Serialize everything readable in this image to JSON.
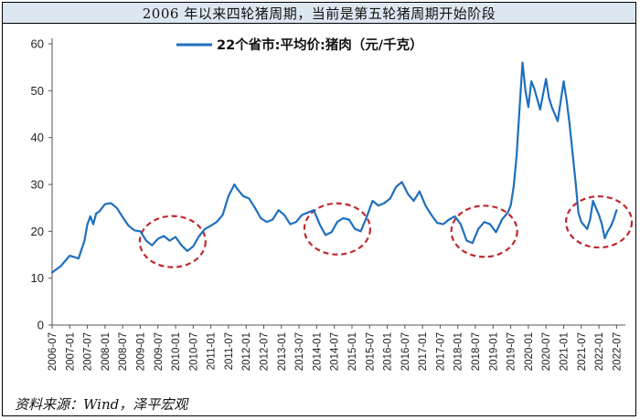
{
  "title": "2006 年以来四轮猪周期，当前是第五轮猪周期开始阶段",
  "source": "资料来源：Wind，泽平宏观",
  "chart_data": {
    "type": "line",
    "series": [
      {
        "name": "22个省市:平均价:猪肉（元/千克）",
        "color": "#1f6fbd",
        "points": [
          [
            "2006-07",
            11.2
          ],
          [
            "2006-10",
            12.6
          ],
          [
            "2007-01",
            14.8
          ],
          [
            "2007-04",
            14.2
          ],
          [
            "2007-06",
            18.0
          ],
          [
            "2007-07",
            21.5
          ],
          [
            "2007-08",
            23.2
          ],
          [
            "2007-09",
            21.5
          ],
          [
            "2007-10",
            23.8
          ],
          [
            "2007-11",
            24.2
          ],
          [
            "2008-01",
            25.8
          ],
          [
            "2008-03",
            26.0
          ],
          [
            "2008-05",
            25.0
          ],
          [
            "2008-07",
            23.0
          ],
          [
            "2008-09",
            21.2
          ],
          [
            "2008-11",
            20.2
          ],
          [
            "2009-01",
            20.0
          ],
          [
            "2009-03",
            18.0
          ],
          [
            "2009-05",
            17.0
          ],
          [
            "2009-07",
            18.4
          ],
          [
            "2009-09",
            19.0
          ],
          [
            "2009-11",
            18.0
          ],
          [
            "2010-01",
            18.8
          ],
          [
            "2010-03",
            17.0
          ],
          [
            "2010-05",
            15.8
          ],
          [
            "2010-07",
            16.8
          ],
          [
            "2010-09",
            19.0
          ],
          [
            "2010-11",
            20.5
          ],
          [
            "2011-01",
            21.2
          ],
          [
            "2011-03",
            22.0
          ],
          [
            "2011-05",
            23.5
          ],
          [
            "2011-07",
            27.5
          ],
          [
            "2011-09",
            30.0
          ],
          [
            "2011-10",
            29.0
          ],
          [
            "2011-12",
            27.5
          ],
          [
            "2012-02",
            27.0
          ],
          [
            "2012-04",
            25.0
          ],
          [
            "2012-06",
            22.8
          ],
          [
            "2012-08",
            22.0
          ],
          [
            "2012-10",
            22.5
          ],
          [
            "2012-12",
            24.5
          ],
          [
            "2013-02",
            23.5
          ],
          [
            "2013-04",
            21.5
          ],
          [
            "2013-06",
            22.0
          ],
          [
            "2013-08",
            23.5
          ],
          [
            "2013-10",
            24.0
          ],
          [
            "2013-12",
            24.5
          ],
          [
            "2014-02",
            21.5
          ],
          [
            "2014-04",
            19.2
          ],
          [
            "2014-06",
            19.8
          ],
          [
            "2014-08",
            22.0
          ],
          [
            "2014-10",
            22.8
          ],
          [
            "2014-12",
            22.5
          ],
          [
            "2015-02",
            20.5
          ],
          [
            "2015-04",
            20.0
          ],
          [
            "2015-06",
            23.0
          ],
          [
            "2015-08",
            26.5
          ],
          [
            "2015-10",
            25.5
          ],
          [
            "2015-12",
            26.0
          ],
          [
            "2016-02",
            27.0
          ],
          [
            "2016-04",
            29.5
          ],
          [
            "2016-06",
            30.5
          ],
          [
            "2016-08",
            28.0
          ],
          [
            "2016-10",
            26.5
          ],
          [
            "2016-12",
            28.5
          ],
          [
            "2017-02",
            25.5
          ],
          [
            "2017-04",
            23.5
          ],
          [
            "2017-06",
            21.8
          ],
          [
            "2017-08",
            21.5
          ],
          [
            "2017-10",
            22.5
          ],
          [
            "2017-12",
            23.2
          ],
          [
            "2018-02",
            21.5
          ],
          [
            "2018-04",
            18.0
          ],
          [
            "2018-06",
            17.5
          ],
          [
            "2018-08",
            20.5
          ],
          [
            "2018-10",
            22.0
          ],
          [
            "2018-12",
            21.5
          ],
          [
            "2019-02",
            19.8
          ],
          [
            "2019-04",
            22.5
          ],
          [
            "2019-06",
            24.0
          ],
          [
            "2019-07",
            25.5
          ],
          [
            "2019-08",
            29.5
          ],
          [
            "2019-09",
            36.0
          ],
          [
            "2019-10",
            46.0
          ],
          [
            "2019-11",
            56.0
          ],
          [
            "2019-12",
            50.0
          ],
          [
            "2020-01",
            46.5
          ],
          [
            "2020-02",
            52.0
          ],
          [
            "2020-03",
            50.5
          ],
          [
            "2020-05",
            46.0
          ],
          [
            "2020-07",
            52.5
          ],
          [
            "2020-08",
            48.5
          ],
          [
            "2020-09",
            46.5
          ],
          [
            "2020-11",
            43.5
          ],
          [
            "2021-01",
            52.0
          ],
          [
            "2021-02",
            48.0
          ],
          [
            "2021-03",
            43.0
          ],
          [
            "2021-04",
            37.0
          ],
          [
            "2021-05",
            31.0
          ],
          [
            "2021-06",
            24.0
          ],
          [
            "2021-07",
            22.0
          ],
          [
            "2021-09",
            20.5
          ],
          [
            "2021-10",
            22.5
          ],
          [
            "2021-11",
            26.5
          ],
          [
            "2021-12",
            25.0
          ],
          [
            "2022-01",
            23.5
          ],
          [
            "2022-02",
            21.5
          ],
          [
            "2022-03",
            18.5
          ],
          [
            "2022-04",
            20.0
          ],
          [
            "2022-05",
            21.0
          ],
          [
            "2022-06",
            22.5
          ],
          [
            "2022-07",
            24.5
          ]
        ]
      }
    ],
    "x_tick_labels": [
      "2006-07",
      "2007-01",
      "2007-07",
      "2008-01",
      "2008-07",
      "2009-01",
      "2009-07",
      "2010-01",
      "2010-07",
      "2011-01",
      "2011-07",
      "2012-01",
      "2012-07",
      "2013-01",
      "2013-07",
      "2014-01",
      "2014-07",
      "2015-01",
      "2015-07",
      "2016-01",
      "2016-07",
      "2017-01",
      "2017-07",
      "2018-01",
      "2018-07",
      "2019-01",
      "2019-07",
      "2020-01",
      "2020-07",
      "2021-01",
      "2021-07",
      "2022-01",
      "2022-07"
    ],
    "y_ticks": [
      0,
      10,
      20,
      30,
      40,
      50,
      60
    ],
    "ylim": [
      0,
      60
    ],
    "xlim": [
      "2006-07",
      "2022-10"
    ],
    "grid": false,
    "legend_position": "top-center",
    "annotations": [
      {
        "type": "dashed-ellipse",
        "color": "#c0282d",
        "center": [
          "2009-12",
          17.8
        ]
      },
      {
        "type": "dashed-ellipse",
        "color": "#c0282d",
        "center": [
          "2014-08",
          20.5
        ]
      },
      {
        "type": "dashed-ellipse",
        "color": "#c0282d",
        "center": [
          "2018-10",
          20.0
        ]
      },
      {
        "type": "dashed-ellipse",
        "color": "#c0282d",
        "center": [
          "2022-01",
          22.0
        ]
      }
    ]
  }
}
